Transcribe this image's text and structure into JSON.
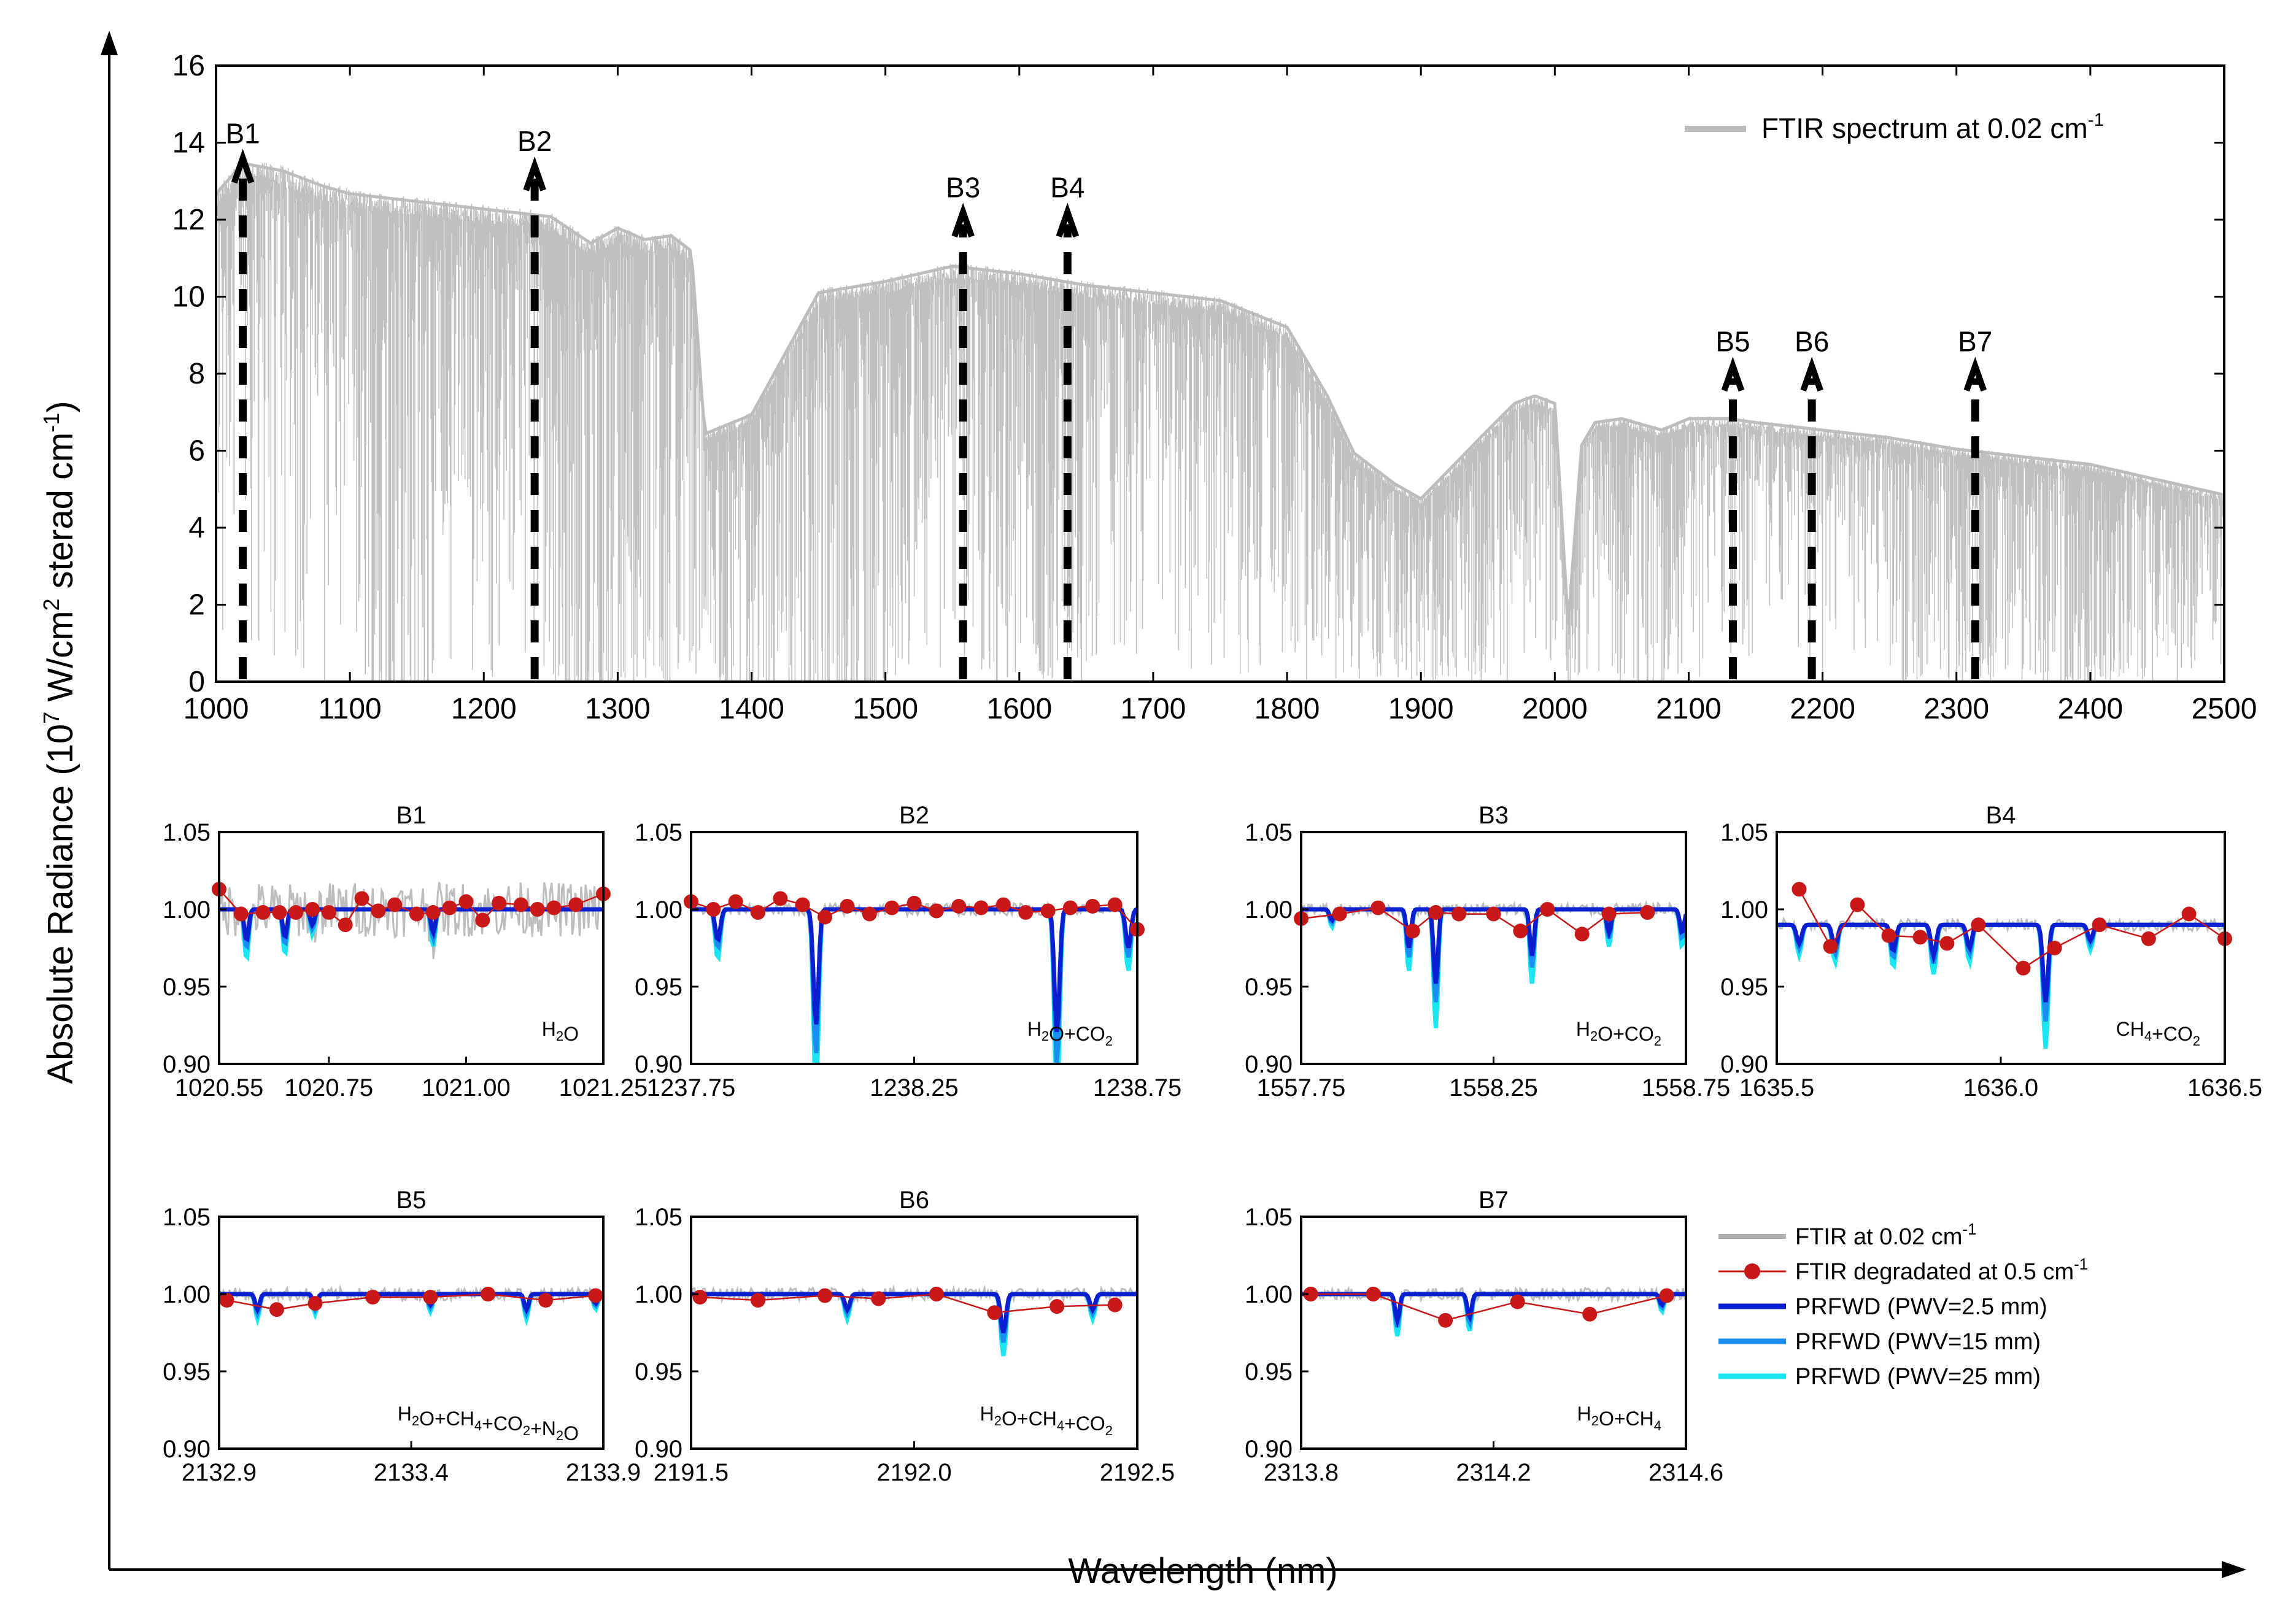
{
  "figure": {
    "y_axis_label": "Absolute Radiance (10",
    "y_axis_label_sup1": "7",
    "y_axis_label_mid": " W/cm",
    "y_axis_label_sup2": "2",
    "y_axis_label_end": " sterad cm",
    "y_axis_label_sup3": "-1",
    "y_axis_label_close": ")",
    "x_axis_label": "Wavelength (nm)"
  },
  "chart_data": [
    {
      "type": "area",
      "id": "overview",
      "title": "",
      "xlabel": "Wavelength (nm)",
      "ylabel": "Absolute Radiance (10^7 W/cm^2 sterad cm^-1)",
      "xlim": [
        1000,
        2500
      ],
      "ylim": [
        0,
        16
      ],
      "xticks": [
        "1000",
        "1100",
        "1200",
        "1300",
        "1400",
        "1500",
        "1600",
        "1700",
        "1800",
        "1900",
        "2000",
        "2100",
        "2200",
        "2300",
        "2400",
        "2500"
      ],
      "yticks": [
        "0",
        "2",
        "4",
        "6",
        "8",
        "10",
        "12",
        "14",
        "16"
      ],
      "legend": {
        "label": "FTIR spectrum at 0.02 cm",
        "sup": "-1",
        "position": "top-right"
      },
      "envelope": {
        "x": [
          1000,
          1020,
          1050,
          1080,
          1100,
          1150,
          1200,
          1250,
          1280,
          1300,
          1320,
          1340,
          1355,
          1365,
          1400,
          1450,
          1500,
          1550,
          1600,
          1650,
          1700,
          1750,
          1800,
          1830,
          1850,
          1880,
          1900,
          1950,
          1970,
          1985,
          2000,
          2010,
          2020,
          2030,
          2050,
          2080,
          2100,
          2130,
          2150,
          2200,
          2250,
          2300,
          2350,
          2400,
          2450,
          2500
        ],
        "values": [
          12.8,
          13.6,
          13.4,
          13.0,
          12.8,
          12.6,
          12.4,
          12.2,
          11.5,
          11.9,
          11.6,
          11.7,
          11.3,
          6.5,
          7.0,
          10.2,
          10.5,
          10.9,
          10.7,
          10.4,
          10.2,
          10.0,
          9.3,
          7.5,
          6.0,
          5.2,
          4.8,
          6.6,
          7.3,
          7.5,
          7.3,
          1.5,
          6.2,
          6.8,
          6.9,
          6.6,
          6.9,
          6.9,
          6.8,
          6.6,
          6.4,
          6.1,
          5.9,
          5.7,
          5.3,
          4.9
        ]
      },
      "floor": {
        "x": [
          1000,
          1100,
          1110,
          1115,
          1160,
          1170,
          1230,
          1240,
          1260,
          1280,
          1300,
          1320,
          1340,
          1360,
          1380,
          1400,
          1450,
          1500,
          1520,
          1560,
          1580,
          1600,
          1620,
          1640,
          1660,
          1700,
          1730,
          1760,
          1790,
          1800,
          1830,
          1860,
          1900,
          1950,
          1980,
          2000,
          2010,
          2030,
          2060,
          2080,
          2100,
          2150,
          2200,
          2250,
          2260,
          2300,
          2350,
          2400,
          2450,
          2500
        ],
        "values": [
          8.5,
          7.5,
          2.0,
          0.0,
          0.0,
          4.0,
          6.0,
          3.0,
          0.0,
          0.0,
          0.0,
          1.5,
          0.0,
          3.5,
          0.0,
          0.0,
          0.0,
          0.0,
          4.0,
          6.0,
          0.0,
          3.5,
          0.0,
          2.5,
          5.0,
          6.0,
          5.0,
          4.5,
          2.5,
          2.0,
          2.0,
          1.0,
          0.3,
          1.0,
          3.0,
          5.5,
          0.0,
          4.0,
          0.0,
          0.0,
          4.5,
          5.0,
          4.0,
          3.0,
          0.0,
          1.5,
          0.5,
          0.0,
          1.0,
          2.5
        ]
      },
      "bands": [
        {
          "name": "B1",
          "x": 1020
        },
        {
          "name": "B2",
          "x": 1238
        },
        {
          "name": "B3",
          "x": 1558
        },
        {
          "name": "B4",
          "x": 1636
        },
        {
          "name": "B5",
          "x": 2133
        },
        {
          "name": "B6",
          "x": 2192
        },
        {
          "name": "B7",
          "x": 2314
        }
      ]
    },
    {
      "type": "line",
      "id": "B1",
      "title": "B1",
      "gas": "H2O",
      "xlim": [
        1020.55,
        1021.25
      ],
      "ylim": [
        0.9,
        1.05
      ],
      "xticks": [
        "1020.55",
        "1020.75",
        "1021.00",
        "1021.25"
      ],
      "yticks": [
        "0.90",
        "0.95",
        "1.00",
        "1.05"
      ],
      "dips": [
        [
          1020.6,
          0.98
        ],
        [
          1020.67,
          0.982
        ],
        [
          1020.94,
          0.985
        ],
        [
          1020.72,
          0.99
        ]
      ],
      "dots_x": [
        1020.55,
        1020.59,
        1020.63,
        1020.66,
        1020.69,
        1020.72,
        1020.75,
        1020.78,
        1020.81,
        1020.84,
        1020.87,
        1020.91,
        1020.94,
        1020.97,
        1021.0,
        1021.03,
        1021.06,
        1021.1,
        1021.13,
        1021.16,
        1021.2,
        1021.25
      ],
      "dots_y": [
        1.013,
        0.997,
        0.998,
        0.998,
        0.998,
        1.0,
        0.998,
        0.99,
        1.007,
        0.999,
        1.003,
        0.997,
        0.998,
        1.001,
        1.005,
        0.993,
        1.004,
        1.003,
        1.0,
        1.001,
        1.003,
        1.01
      ]
    },
    {
      "type": "line",
      "id": "B2",
      "title": "B2",
      "gas": "H2O+CO2",
      "xlim": [
        1237.75,
        1238.75
      ],
      "ylim": [
        0.9,
        1.05
      ],
      "xticks": [
        "1237.75",
        "1238.25",
        "1238.75"
      ],
      "yticks": [
        "0.90",
        "0.95",
        "1.00",
        "1.05"
      ],
      "dips": [
        [
          1237.81,
          0.98
        ],
        [
          1238.03,
          0.925
        ],
        [
          1238.57,
          0.92
        ],
        [
          1238.73,
          0.975
        ]
      ],
      "dots_x": [
        1237.75,
        1237.8,
        1237.85,
        1237.9,
        1237.95,
        1238.0,
        1238.05,
        1238.1,
        1238.15,
        1238.2,
        1238.25,
        1238.3,
        1238.35,
        1238.4,
        1238.45,
        1238.5,
        1238.55,
        1238.6,
        1238.65,
        1238.7,
        1238.75
      ],
      "dots_y": [
        1.005,
        1.0,
        1.005,
        0.998,
        1.007,
        1.003,
        0.995,
        1.002,
        0.997,
        1.001,
        1.004,
        0.999,
        1.002,
        1.001,
        1.003,
        0.998,
        0.999,
        1.001,
        1.002,
        1.003,
        0.987
      ]
    },
    {
      "type": "line",
      "id": "B3",
      "title": "B3",
      "gas": "H2O+CO2",
      "xlim": [
        1557.75,
        1558.75
      ],
      "ylim": [
        0.9,
        1.05
      ],
      "xticks": [
        "1557.75",
        "1558.25",
        "1558.75"
      ],
      "yticks": [
        "0.90",
        "0.95",
        "1.00",
        "1.05"
      ],
      "dips": [
        [
          1557.83,
          0.993
        ],
        [
          1558.03,
          0.975
        ],
        [
          1558.1,
          0.952
        ],
        [
          1558.35,
          0.97
        ],
        [
          1558.55,
          0.985
        ],
        [
          1558.74,
          0.985
        ]
      ],
      "dots_x": [
        1557.75,
        1557.85,
        1557.95,
        1558.04,
        1558.1,
        1558.16,
        1558.25,
        1558.32,
        1558.39,
        1558.48,
        1558.55,
        1558.65
      ],
      "dots_y": [
        0.994,
        0.997,
        1.001,
        0.986,
        0.998,
        0.997,
        0.997,
        0.986,
        1.0,
        0.984,
        0.997,
        0.998
      ]
    },
    {
      "type": "line",
      "id": "B4",
      "title": "B4",
      "gas": "CH4+CO2",
      "xlim": [
        1635.5,
        1636.5
      ],
      "ylim": [
        0.9,
        1.05
      ],
      "xticks": [
        "1635.5",
        "1636.0",
        "1636.5"
      ],
      "yticks": [
        "0.90",
        "0.95",
        "1.00",
        "1.05"
      ],
      "baseline": 0.99,
      "dips": [
        [
          1635.55,
          0.978
        ],
        [
          1635.63,
          0.975
        ],
        [
          1635.76,
          0.973
        ],
        [
          1635.85,
          0.97
        ],
        [
          1635.93,
          0.975
        ],
        [
          1636.1,
          0.94
        ],
        [
          1636.2,
          0.98
        ]
      ],
      "dots_x": [
        1635.55,
        1635.62,
        1635.68,
        1635.75,
        1635.82,
        1635.88,
        1635.95,
        1636.05,
        1636.12,
        1636.22,
        1636.33,
        1636.42,
        1636.5
      ],
      "dots_y": [
        1.013,
        0.976,
        1.003,
        0.983,
        0.982,
        0.978,
        0.99,
        0.962,
        0.975,
        0.99,
        0.981,
        0.997,
        0.981
      ]
    },
    {
      "type": "line",
      "id": "B5",
      "title": "B5",
      "gas": "H2O+CH4+CO2+N2O",
      "xlim": [
        2132.9,
        2133.9
      ],
      "ylim": [
        0.9,
        1.05
      ],
      "xticks": [
        "2132.9",
        "2133.4",
        "2133.9"
      ],
      "yticks": [
        "0.90",
        "0.95",
        "1.00",
        "1.05"
      ],
      "dips": [
        [
          2133.0,
          0.99
        ],
        [
          2133.15,
          0.992
        ],
        [
          2133.45,
          0.993
        ],
        [
          2133.7,
          0.99
        ],
        [
          2133.88,
          0.994
        ]
      ],
      "dots_x": [
        2132.92,
        2133.05,
        2133.15,
        2133.3,
        2133.45,
        2133.6,
        2133.75,
        2133.88
      ],
      "dots_y": [
        0.996,
        0.99,
        0.994,
        0.998,
        0.998,
        1.0,
        0.996,
        0.999
      ]
    },
    {
      "type": "line",
      "id": "B6",
      "title": "B6",
      "gas": "H2O+CH4+CO2",
      "xlim": [
        2191.5,
        2192.5
      ],
      "ylim": [
        0.9,
        1.05
      ],
      "xticks": [
        "2191.5",
        "2192.0",
        "2192.5"
      ],
      "yticks": [
        "0.90",
        "0.95",
        "1.00",
        "1.05"
      ],
      "dips": [
        [
          2191.85,
          0.99
        ],
        [
          2192.2,
          0.975
        ],
        [
          2192.4,
          0.99
        ]
      ],
      "dots_x": [
        2191.52,
        2191.65,
        2191.8,
        2191.92,
        2192.05,
        2192.18,
        2192.32,
        2192.45
      ],
      "dots_y": [
        0.998,
        0.996,
        0.999,
        0.997,
        1.0,
        0.988,
        0.992,
        0.993
      ]
    },
    {
      "type": "line",
      "id": "B7",
      "title": "B7",
      "gas": "H2O+CH4",
      "xlim": [
        2313.8,
        2314.6
      ],
      "ylim": [
        0.9,
        1.05
      ],
      "xticks": [
        "2313.8",
        "2314.2",
        "2314.6"
      ],
      "yticks": [
        "0.90",
        "0.95",
        "1.00",
        "1.05"
      ],
      "dips": [
        [
          2314.0,
          0.983
        ],
        [
          2314.15,
          0.985
        ],
        [
          2314.55,
          0.993
        ]
      ],
      "dots_x": [
        2313.82,
        2313.95,
        2314.1,
        2314.25,
        2314.4,
        2314.56
      ],
      "dots_y": [
        1.0,
        1.0,
        0.983,
        0.995,
        0.987,
        0.999
      ]
    }
  ],
  "legend": {
    "items": [
      {
        "label": "FTIR at 0.02 cm",
        "sup": "-1",
        "color": "#b0b0b0",
        "kind": "line"
      },
      {
        "label": "FTIR degradated at 0.5 cm",
        "sup": "-1",
        "color": "#c81818",
        "kind": "line-dot"
      },
      {
        "label": "PRFWD (PWV=2.5 mm)",
        "color": "#0a1fd0",
        "kind": "line"
      },
      {
        "label": "PRFWD (PWV=15 mm)",
        "color": "#1a8ef0",
        "kind": "line"
      },
      {
        "label": "PRFWD (PWV=25 mm)",
        "color": "#19e6f0",
        "kind": "line"
      }
    ]
  },
  "colors": {
    "ftir_grey": "#bdbdbd",
    "degraded_red": "#c81818",
    "pwv_2_5": "#0a1fd0",
    "pwv_15": "#1a8ef0",
    "pwv_25": "#19e6f0"
  }
}
